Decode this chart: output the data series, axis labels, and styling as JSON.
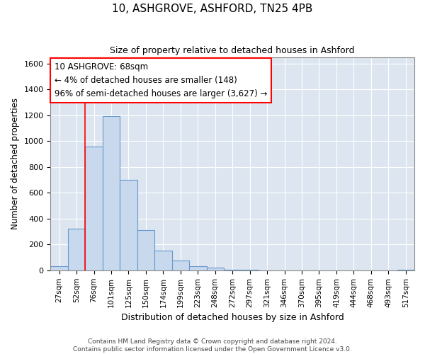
{
  "title": "10, ASHGROVE, ASHFORD, TN25 4PB",
  "subtitle": "Size of property relative to detached houses in Ashford",
  "xlabel": "Distribution of detached houses by size in Ashford",
  "ylabel": "Number of detached properties",
  "bin_labels": [
    "27sqm",
    "52sqm",
    "76sqm",
    "101sqm",
    "125sqm",
    "150sqm",
    "174sqm",
    "199sqm",
    "223sqm",
    "248sqm",
    "272sqm",
    "297sqm",
    "321sqm",
    "346sqm",
    "370sqm",
    "395sqm",
    "419sqm",
    "444sqm",
    "468sqm",
    "493sqm",
    "517sqm"
  ],
  "bar_heights": [
    30,
    320,
    960,
    1195,
    700,
    310,
    155,
    75,
    30,
    20,
    5,
    5,
    0,
    0,
    0,
    0,
    0,
    0,
    0,
    0,
    5
  ],
  "bar_color": "#c8d9ee",
  "bar_edge_color": "#6699cc",
  "plot_bg_color": "#dde6f0",
  "grid_color": "#ffffff",
  "fig_bg_color": "#ffffff",
  "ylim": [
    0,
    1650
  ],
  "yticks": [
    0,
    200,
    400,
    600,
    800,
    1000,
    1200,
    1400,
    1600
  ],
  "red_line_bin": 1.5,
  "annotation_title": "10 ASHGROVE: 68sqm",
  "annotation_line1": "← 4% of detached houses are smaller (148)",
  "annotation_line2": "96% of semi-detached houses are larger (3,627) →",
  "footer1": "Contains HM Land Registry data © Crown copyright and database right 2024.",
  "footer2": "Contains public sector information licensed under the Open Government Licence v3.0."
}
